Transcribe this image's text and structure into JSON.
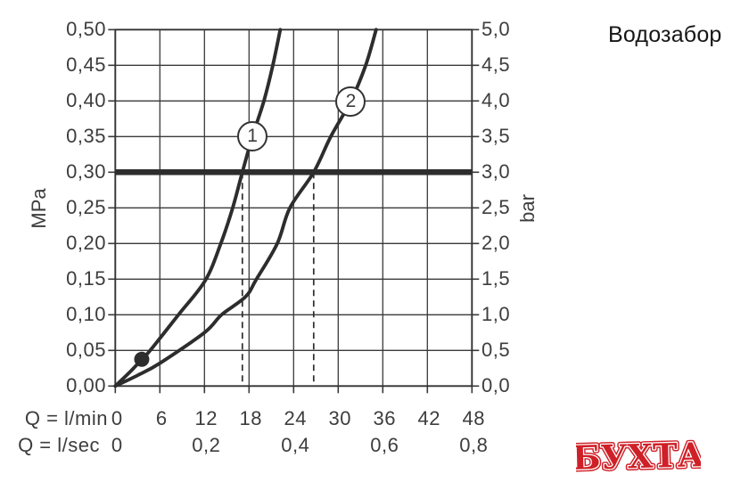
{
  "title": "Водозабор",
  "watermark": {
    "text": "БУХТА",
    "color": "#cf2027",
    "outline": "#ffffff"
  },
  "chart_data": {
    "type": "line",
    "title": "Водозабор",
    "xlabel_row1": "Q = l/min",
    "xlabel_row2": "Q = l/sec",
    "ylabel_left": "MPa",
    "ylabel_right": "bar",
    "xlim_lmin": [
      0,
      48
    ],
    "ylim_mpa": [
      0,
      0.5
    ],
    "grid": true,
    "x_ticks_lmin": [
      "0",
      "6",
      "12",
      "18",
      "24",
      "30",
      "36",
      "42",
      "48"
    ],
    "x_ticks_lmin_values": [
      0,
      6,
      12,
      18,
      24,
      30,
      36,
      42,
      48
    ],
    "x_ticks_lsec": [
      "0",
      "0,2",
      "0,4",
      "0,6",
      "0,8"
    ],
    "x_ticks_lsec_at_lmin": [
      0,
      12,
      24,
      36,
      48
    ],
    "y_ticks_mpa": [
      "0,50",
      "0,45",
      "0,40",
      "0,35",
      "0,30",
      "0,25",
      "0,20",
      "0,15",
      "0,10",
      "0,05",
      "0,00"
    ],
    "y_ticks_bar": [
      "5,0",
      "4,5",
      "4,0",
      "3,5",
      "3,0",
      "2,5",
      "2,0",
      "1,5",
      "1,0",
      "0,5",
      "0,0"
    ],
    "reference_line_mpa": 0.3,
    "dashed_guides_lmin": [
      17.1,
      26.7
    ],
    "marker_point_lmin_mpa": [
      3.56,
      0.0375
    ],
    "series": [
      {
        "name": "1",
        "label_at": [
          18.45,
          0.35
        ],
        "points": [
          [
            0,
            0
          ],
          [
            2,
            0.02
          ],
          [
            3.56,
            0.0375
          ],
          [
            4.7,
            0.05
          ],
          [
            8.5,
            0.1
          ],
          [
            12.1,
            0.148
          ],
          [
            14.2,
            0.2
          ],
          [
            15.8,
            0.25
          ],
          [
            17.1,
            0.3
          ],
          [
            18.45,
            0.35
          ],
          [
            20.0,
            0.4
          ],
          [
            21.2,
            0.45
          ],
          [
            22.2,
            0.5
          ]
        ]
      },
      {
        "name": "2",
        "label_at": [
          31.7,
          0.399
        ],
        "points": [
          [
            0,
            0
          ],
          [
            3,
            0.015
          ],
          [
            6,
            0.032
          ],
          [
            12,
            0.075
          ],
          [
            14.3,
            0.1
          ],
          [
            17.5,
            0.125
          ],
          [
            19,
            0.15
          ],
          [
            21.8,
            0.2
          ],
          [
            23.5,
            0.25
          ],
          [
            26.7,
            0.3
          ],
          [
            29,
            0.35
          ],
          [
            31.7,
            0.4
          ],
          [
            33.7,
            0.45
          ],
          [
            35.1,
            0.5
          ]
        ]
      }
    ],
    "line_color": "#2d2d2d",
    "grid_color": "#3a3a3a",
    "label_color": "#3d3d3d"
  }
}
